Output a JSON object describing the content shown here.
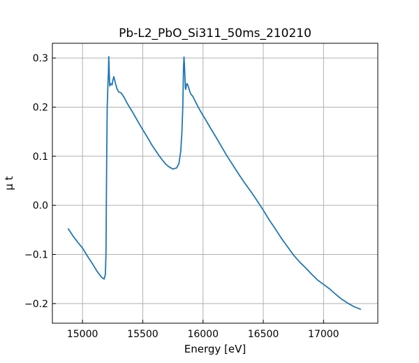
{
  "chart_data": {
    "type": "line",
    "title": "Pb-L2_PbO_Si311_50ms_210210",
    "xlabel": "Energy [eV]",
    "ylabel": "μ t",
    "xlim": [
      14750,
      17450
    ],
    "ylim": [
      -0.24,
      0.33
    ],
    "grid": true,
    "tick_direction": "in",
    "xticks": [
      {
        "value": 15000,
        "label": "15000"
      },
      {
        "value": 15500,
        "label": "15500"
      },
      {
        "value": 16000,
        "label": "16000"
      },
      {
        "value": 16500,
        "label": "16500"
      },
      {
        "value": 17000,
        "label": "17000"
      }
    ],
    "yticks": [
      {
        "value": -0.2,
        "label": "−0.2"
      },
      {
        "value": -0.1,
        "label": "−0.1"
      },
      {
        "value": 0.0,
        "label": "0.0"
      },
      {
        "value": 0.1,
        "label": "0.1"
      },
      {
        "value": 0.2,
        "label": "0.2"
      },
      {
        "value": 0.3,
        "label": "0.3"
      }
    ],
    "series": [
      {
        "color": "#1f77b4",
        "x": [
          14880,
          14920,
          14960,
          15000,
          15040,
          15080,
          15120,
          15160,
          15180,
          15190,
          15195,
          15200,
          15205,
          15210,
          15215,
          15218,
          15222,
          15226,
          15232,
          15238,
          15245,
          15252,
          15260,
          15272,
          15285,
          15300,
          15320,
          15345,
          15370,
          15395,
          15420,
          15450,
          15480,
          15510,
          15540,
          15570,
          15600,
          15630,
          15660,
          15690,
          15720,
          15750,
          15780,
          15800,
          15815,
          15825,
          15832,
          15838,
          15842,
          15846,
          15850,
          15853,
          15856,
          15860,
          15866,
          15872,
          15880,
          15890,
          15900,
          15915,
          15935,
          15960,
          15990,
          16020,
          16060,
          16100,
          16150,
          16200,
          16250,
          16300,
          16350,
          16400,
          16450,
          16500,
          16550,
          16600,
          16650,
          16700,
          16750,
          16800,
          16850,
          16900,
          16950,
          17000,
          17050,
          17100,
          17150,
          17200,
          17250,
          17280,
          17310
        ],
        "y": [
          -0.047,
          -0.062,
          -0.075,
          -0.087,
          -0.103,
          -0.118,
          -0.134,
          -0.147,
          -0.15,
          -0.14,
          -0.095,
          0.08,
          0.2,
          0.24,
          0.27,
          0.303,
          0.27,
          0.243,
          0.248,
          0.247,
          0.245,
          0.255,
          0.262,
          0.25,
          0.238,
          0.231,
          0.229,
          0.22,
          0.208,
          0.198,
          0.188,
          0.175,
          0.162,
          0.15,
          0.138,
          0.125,
          0.114,
          0.103,
          0.093,
          0.084,
          0.078,
          0.074,
          0.076,
          0.085,
          0.11,
          0.15,
          0.2,
          0.28,
          0.302,
          0.285,
          0.26,
          0.24,
          0.236,
          0.242,
          0.248,
          0.246,
          0.24,
          0.232,
          0.226,
          0.222,
          0.212,
          0.2,
          0.187,
          0.175,
          0.158,
          0.142,
          0.121,
          0.1,
          0.081,
          0.062,
          0.044,
          0.027,
          0.009,
          -0.01,
          -0.03,
          -0.048,
          -0.067,
          -0.084,
          -0.101,
          -0.115,
          -0.127,
          -0.14,
          -0.152,
          -0.161,
          -0.17,
          -0.181,
          -0.191,
          -0.199,
          -0.206,
          -0.209,
          -0.212
        ]
      }
    ]
  }
}
